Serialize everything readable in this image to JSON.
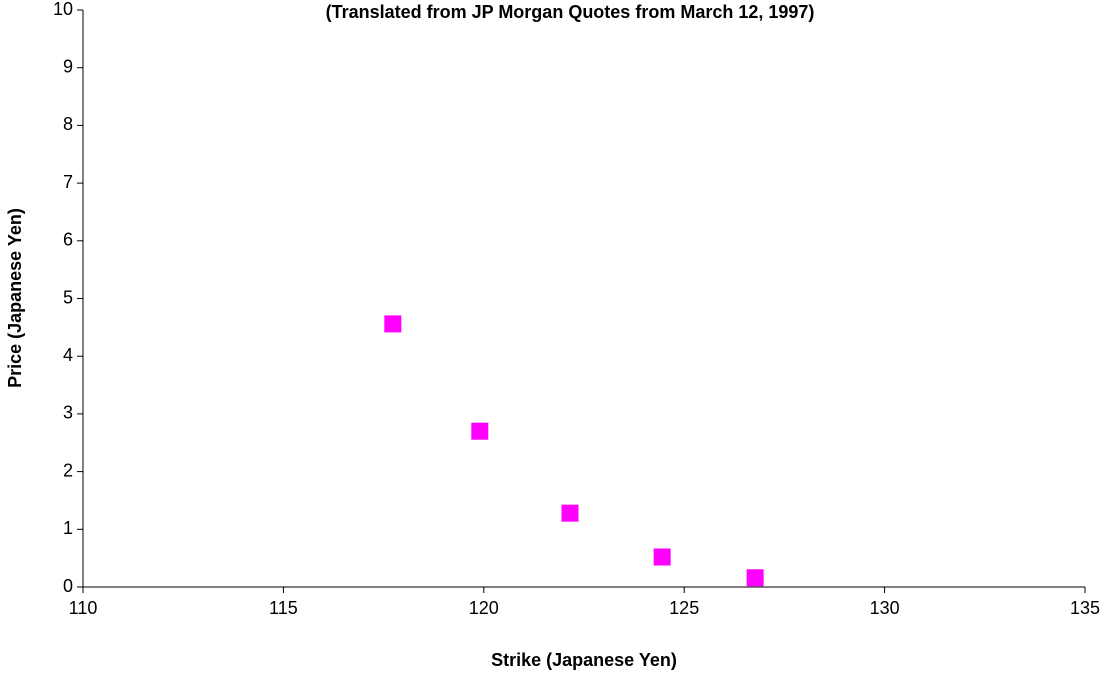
{
  "chart_data": {
    "type": "scatter",
    "title": "(Translated from JP Morgan Quotes from March 12, 1997)",
    "x_label": "Strike (Japanese Yen)",
    "y_label": "Price (Japanese Yen)",
    "x": [
      117.73,
      119.9,
      122.15,
      124.45,
      126.77
    ],
    "values": [
      4.56,
      2.7,
      1.28,
      0.52,
      0.16
    ],
    "color": "#ff00ff",
    "marker": "square",
    "xlim": [
      110,
      135
    ],
    "xticks": [
      110,
      115,
      120,
      125,
      130,
      135
    ],
    "ylim": [
      0,
      10
    ],
    "yticks": [
      0,
      1,
      2,
      3,
      4,
      5,
      6,
      7,
      8,
      9,
      10
    ],
    "grid": false
  }
}
